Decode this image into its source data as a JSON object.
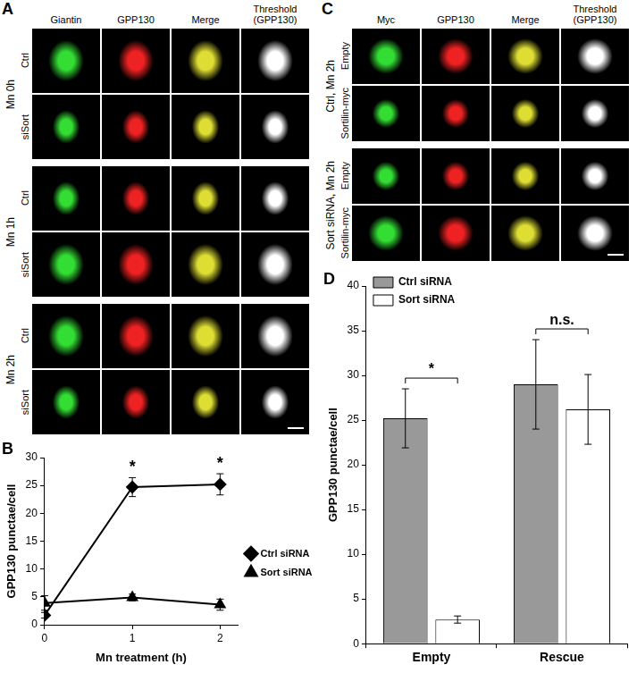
{
  "panels": [
    {
      "label": "A",
      "columns": [
        "Giantin",
        "GPP130",
        "Merge",
        "Threshold (GPP130)"
      ],
      "groups": [
        {
          "label": "Mn 0h",
          "rows": [
            "Ctrl",
            "siSort"
          ]
        },
        {
          "label": "Mn 1h",
          "rows": [
            "Ctrl",
            "siSort"
          ]
        },
        {
          "label": "Mn 2h",
          "rows": [
            "Ctrl",
            "siSort"
          ]
        }
      ]
    },
    {
      "label": "C",
      "columns": [
        "Myc",
        "GPP130",
        "Merge",
        "Threshold (GPP130)"
      ],
      "groups": [
        {
          "label": "Ctrl, Mn 2h",
          "rows": [
            "Empty",
            "Sortilin-myc"
          ]
        },
        {
          "label": "Sort siRNA, Mn 2h",
          "rows": [
            "Empty",
            "Sortilin-myc"
          ]
        }
      ]
    }
  ],
  "chart_data": [
    {
      "panel": "B",
      "type": "line",
      "x": [
        0,
        1,
        2
      ],
      "series": [
        {
          "name": "Ctrl siRNA",
          "color": "#000000",
          "marker": "diamond",
          "values": [
            1.7,
            24.7,
            25.2
          ],
          "errors": [
            0.5,
            1.7,
            1.9
          ]
        },
        {
          "name": "Sort siRNA",
          "color": "#000000",
          "marker": "triangle",
          "values": [
            3.9,
            4.9,
            3.6
          ],
          "errors": [
            1.3,
            0.6,
            1.0
          ]
        }
      ],
      "x_label": "Mn treatment (h)",
      "y_label": "GPP130 punctae/cell",
      "xlim": [
        0,
        2.2
      ],
      "xticks": [
        0,
        1,
        2
      ],
      "ylim": [
        0,
        30
      ],
      "yticks": [
        0,
        5,
        10,
        15,
        20,
        25,
        30
      ],
      "grid": false,
      "legend": "right",
      "annotations": [
        {
          "x": 1,
          "text": "*"
        },
        {
          "x": 2,
          "text": "*"
        }
      ]
    },
    {
      "panel": "D",
      "type": "bar",
      "categories": [
        "Empty",
        "Rescue"
      ],
      "series": [
        {
          "name": "Ctrl siRNA",
          "color": "#999999",
          "values": [
            25.2,
            29.0
          ],
          "errors": [
            3.3,
            5.0
          ]
        },
        {
          "name": "Sort siRNA",
          "color": "#ffffff",
          "values": [
            2.7,
            26.2
          ],
          "errors": [
            0.4,
            3.9
          ]
        }
      ],
      "y_label": "GPP130 punctae/cell",
      "ylim": [
        0,
        40
      ],
      "yticks": [
        0,
        5,
        10,
        15,
        20,
        25,
        30,
        35,
        40
      ],
      "grid": false,
      "legend": "upper left",
      "annotations": [
        {
          "category": "Empty",
          "text": "*"
        },
        {
          "category": "Rescue",
          "text": "n.s."
        }
      ]
    }
  ]
}
